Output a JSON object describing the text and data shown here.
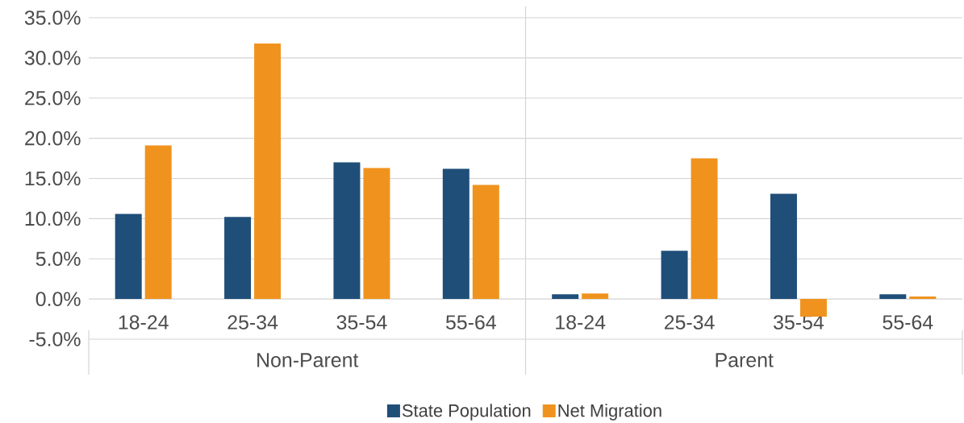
{
  "chart_data": {
    "type": "bar",
    "categories": [
      "18-24",
      "25-34",
      "35-54",
      "55-64",
      "18-24",
      "25-34",
      "35-54",
      "55-64"
    ],
    "series": [
      {
        "name": "State Population",
        "color": "#1f4e79",
        "values": [
          10.6,
          10.2,
          17.0,
          16.2,
          0.6,
          6.0,
          13.1,
          0.6
        ]
      },
      {
        "name": "Net Migration",
        "color": "#f0931e",
        "values": [
          19.1,
          31.8,
          16.3,
          14.2,
          0.7,
          17.5,
          -2.2,
          0.3
        ]
      }
    ],
    "annotations": [
      "Non-Parent",
      "Parent"
    ],
    "ylim": [
      -5,
      35
    ],
    "yticks": [
      {
        "value": -5,
        "label": "-5.0%"
      },
      {
        "value": 0,
        "label": "0.0%"
      },
      {
        "value": 5,
        "label": "5.0%"
      },
      {
        "value": 10,
        "label": "10.0%"
      },
      {
        "value": 15,
        "label": "15.0%"
      },
      {
        "value": 20,
        "label": "20.0%"
      },
      {
        "value": 25,
        "label": "25.0%"
      },
      {
        "value": 30,
        "label": "30.0%"
      },
      {
        "value": 35,
        "label": "35.0%"
      }
    ],
    "grid": "y",
    "legend": "bottom"
  }
}
